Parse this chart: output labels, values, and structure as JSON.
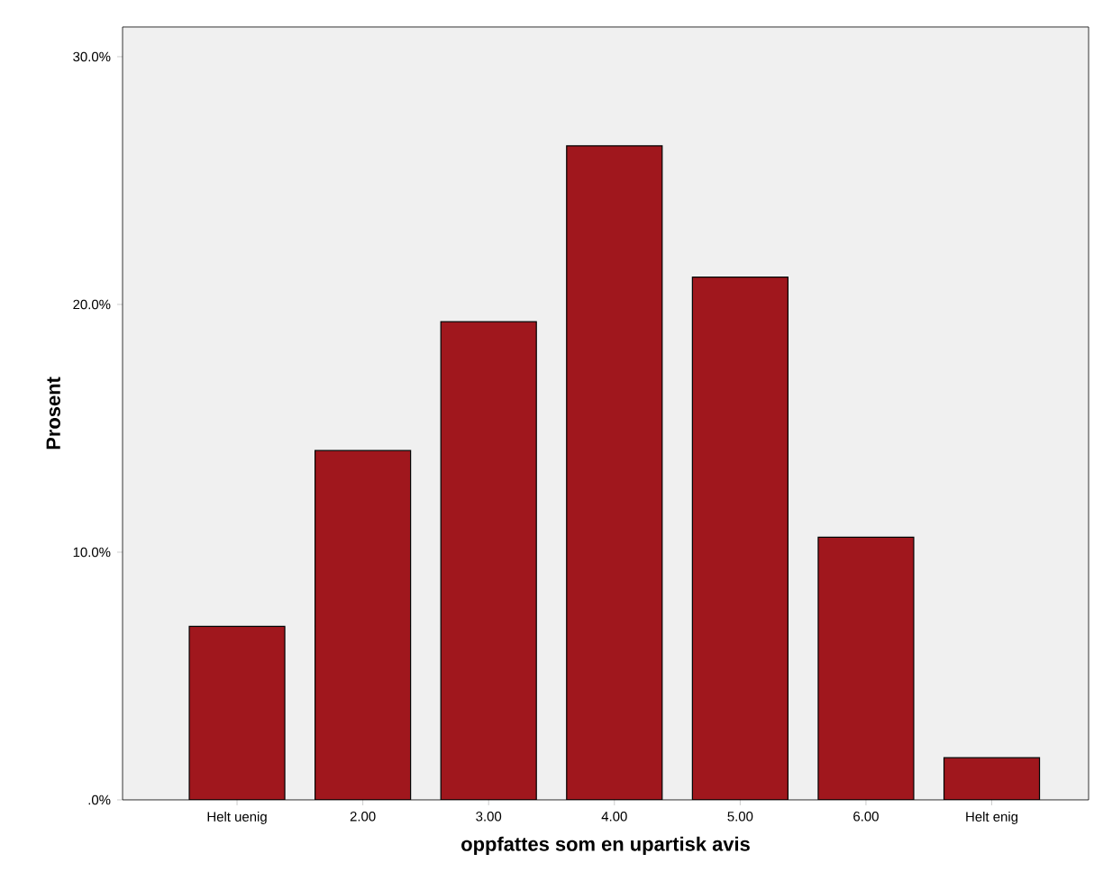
{
  "chart_data": {
    "type": "bar",
    "categories": [
      "Helt uenig",
      "2.00",
      "3.00",
      "4.00",
      "5.00",
      "6.00",
      "Helt enig"
    ],
    "values": [
      7.0,
      14.1,
      19.3,
      26.4,
      21.1,
      10.6,
      1.7
    ],
    "color": "#a0171d",
    "xlabel": "oppfattes som en upartisk avis",
    "ylabel": "Prosent",
    "ylim": [
      0,
      31.2
    ],
    "yticks": [
      {
        "value": 0,
        "label": ".0%"
      },
      {
        "value": 10,
        "label": "10.0%"
      },
      {
        "value": 20,
        "label": "20.0%"
      },
      {
        "value": 30,
        "label": "30.0%"
      }
    ],
    "grid": false
  }
}
